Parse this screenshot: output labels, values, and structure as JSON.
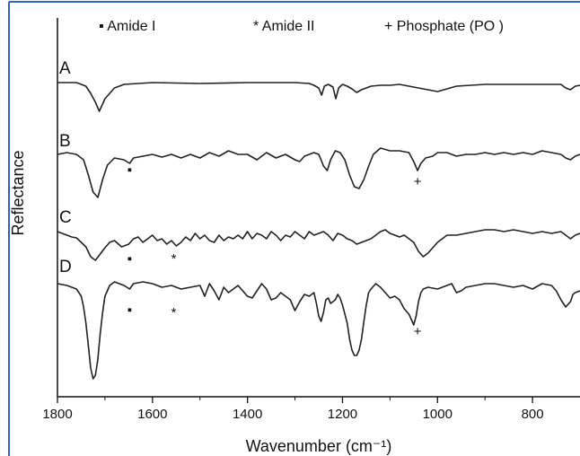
{
  "chart_data": {
    "type": "line",
    "xlabel": "Wavenumber (cm⁻¹)",
    "ylabel": "Reflectance",
    "xlim": [
      1800,
      700
    ],
    "x_ticks": [
      1800,
      1600,
      1400,
      1200,
      1000,
      800
    ],
    "x_tick_labels": [
      "1800",
      "1600",
      "1400",
      "1200",
      "1000",
      "800"
    ],
    "x_reversed": true,
    "legend": [
      {
        "symbol": "▪",
        "label": "Amide I"
      },
      {
        "symbol": "*",
        "label": "Amide II"
      },
      {
        "symbol": "+",
        "label": "Phosphate (PO )"
      }
    ],
    "series": [
      {
        "label": "A",
        "x": [
          1800,
          1760,
          1740,
          1730,
          1720,
          1712,
          1700,
          1680,
          1660,
          1600,
          1500,
          1400,
          1300,
          1270,
          1260,
          1250,
          1244,
          1238,
          1230,
          1220,
          1214,
          1208,
          1200,
          1190,
          1180,
          1170,
          1160,
          1150,
          1140,
          1120,
          1100,
          1080,
          1060,
          1040,
          1020,
          1000,
          960,
          900,
          850,
          800,
          740,
          730,
          720,
          710,
          700
        ],
        "y": [
          92,
          92,
          96,
          104,
          114,
          124,
          110,
          98,
          94,
          92,
          93,
          92,
          92,
          93,
          95,
          98,
          106,
          96,
          94,
          97,
          110,
          98,
          94,
          96,
          99,
          103,
          100,
          98,
          96,
          95,
          95,
          94,
          96,
          98,
          100,
          102,
          96,
          94,
          94,
          94,
          94,
          98,
          100,
          96,
          95
        ]
      },
      {
        "label": "B",
        "x": [
          1800,
          1780,
          1760,
          1745,
          1735,
          1725,
          1715,
          1705,
          1695,
          1680,
          1660,
          1648,
          1640,
          1620,
          1600,
          1580,
          1560,
          1540,
          1520,
          1500,
          1480,
          1460,
          1440,
          1420,
          1400,
          1380,
          1360,
          1340,
          1320,
          1300,
          1290,
          1280,
          1260,
          1250,
          1245,
          1240,
          1232,
          1225,
          1215,
          1205,
          1195,
          1185,
          1175,
          1165,
          1155,
          1145,
          1135,
          1120,
          1100,
          1080,
          1060,
          1050,
          1042,
          1035,
          1025,
          1010,
          1000,
          980,
          960,
          940,
          920,
          900,
          880,
          860,
          840,
          820,
          800,
          780,
          760,
          740,
          730,
          720,
          710,
          700
        ],
        "y": [
          172,
          170,
          172,
          178,
          195,
          214,
          220,
          200,
          184,
          176,
          178,
          182,
          176,
          174,
          172,
          175,
          172,
          176,
          172,
          176,
          170,
          174,
          168,
          172,
          172,
          178,
          170,
          176,
          172,
          178,
          180,
          174,
          170,
          172,
          178,
          185,
          190,
          178,
          168,
          170,
          178,
          195,
          208,
          210,
          200,
          185,
          172,
          165,
          168,
          168,
          170,
          180,
          190,
          182,
          176,
          174,
          170,
          170,
          174,
          172,
          172,
          170,
          172,
          170,
          172,
          170,
          172,
          168,
          170,
          172,
          176,
          178,
          174,
          172
        ]
      },
      {
        "label": "C",
        "x": [
          1800,
          1780,
          1770,
          1760,
          1750,
          1740,
          1730,
          1720,
          1710,
          1700,
          1690,
          1680,
          1665,
          1650,
          1640,
          1630,
          1620,
          1600,
          1590,
          1580,
          1570,
          1560,
          1550,
          1540,
          1530,
          1520,
          1510,
          1500,
          1490,
          1480,
          1470,
          1460,
          1450,
          1440,
          1430,
          1420,
          1410,
          1400,
          1390,
          1380,
          1370,
          1360,
          1350,
          1340,
          1330,
          1320,
          1310,
          1300,
          1290,
          1280,
          1270,
          1260,
          1250,
          1240,
          1230,
          1220,
          1210,
          1200,
          1190,
          1180,
          1170,
          1160,
          1150,
          1140,
          1130,
          1120,
          1110,
          1100,
          1090,
          1080,
          1070,
          1060,
          1050,
          1040,
          1030,
          1020,
          1010,
          1000,
          990,
          980,
          960,
          940,
          920,
          900,
          880,
          860,
          840,
          820,
          800,
          780,
          760,
          740,
          730,
          720,
          710,
          700
        ],
        "y": [
          258,
          262,
          264,
          265,
          270,
          275,
          286,
          290,
          283,
          276,
          270,
          268,
          275,
          272,
          266,
          264,
          270,
          262,
          268,
          266,
          272,
          268,
          274,
          270,
          264,
          268,
          260,
          266,
          262,
          268,
          270,
          262,
          268,
          264,
          266,
          262,
          266,
          258,
          266,
          260,
          262,
          266,
          258,
          262,
          268,
          262,
          264,
          258,
          262,
          266,
          258,
          262,
          260,
          258,
          262,
          268,
          260,
          262,
          266,
          268,
          272,
          270,
          268,
          266,
          262,
          258,
          256,
          260,
          262,
          264,
          262,
          266,
          270,
          280,
          286,
          282,
          276,
          270,
          266,
          262,
          262,
          260,
          258,
          256,
          256,
          258,
          256,
          258,
          260,
          258,
          260,
          258,
          262,
          266,
          262,
          260
        ]
      },
      {
        "label": "D",
        "x": [
          1800,
          1780,
          1760,
          1750,
          1745,
          1740,
          1735,
          1730,
          1725,
          1720,
          1715,
          1710,
          1705,
          1700,
          1690,
          1680,
          1660,
          1648,
          1640,
          1620,
          1600,
          1580,
          1560,
          1540,
          1520,
          1500,
          1490,
          1480,
          1470,
          1460,
          1450,
          1440,
          1420,
          1400,
          1390,
          1380,
          1370,
          1360,
          1350,
          1340,
          1330,
          1320,
          1310,
          1300,
          1290,
          1280,
          1270,
          1260,
          1255,
          1250,
          1245,
          1240,
          1235,
          1230,
          1225,
          1220,
          1215,
          1210,
          1205,
          1200,
          1190,
          1185,
          1180,
          1175,
          1170,
          1165,
          1160,
          1155,
          1150,
          1145,
          1140,
          1130,
          1120,
          1110,
          1100,
          1090,
          1080,
          1070,
          1060,
          1055,
          1050,
          1045,
          1040,
          1035,
          1030,
          1020,
          1000,
          980,
          970,
          960,
          950,
          940,
          920,
          900,
          880,
          860,
          840,
          820,
          800,
          780,
          760,
          750,
          740,
          730,
          720,
          715,
          710,
          700
        ],
        "y": [
          316,
          318,
          322,
          330,
          342,
          360,
          385,
          410,
          422,
          418,
          400,
          372,
          348,
          330,
          318,
          314,
          318,
          322,
          316,
          314,
          316,
          320,
          318,
          322,
          320,
          318,
          330,
          316,
          324,
          334,
          320,
          326,
          318,
          330,
          332,
          324,
          316,
          322,
          334,
          332,
          326,
          330,
          334,
          346,
          336,
          328,
          330,
          326,
          338,
          352,
          358,
          348,
          334,
          332,
          338,
          336,
          334,
          328,
          332,
          340,
          360,
          378,
          390,
          396,
          396,
          390,
          378,
          358,
          340,
          326,
          322,
          316,
          320,
          326,
          332,
          330,
          334,
          344,
          350,
          356,
          362,
          352,
          336,
          326,
          322,
          320,
          322,
          318,
          316,
          326,
          324,
          320,
          318,
          316,
          316,
          318,
          320,
          318,
          322,
          316,
          318,
          324,
          334,
          342,
          336,
          328,
          326,
          324
        ]
      }
    ],
    "annotations": [
      {
        "label": "▪",
        "x": 1648,
        "series": "B"
      },
      {
        "label": "+",
        "x": 1042,
        "series": "B"
      },
      {
        "label": "▪",
        "x": 1648,
        "series": "C"
      },
      {
        "label": "*",
        "x": 1555,
        "series": "C"
      },
      {
        "label": "▪",
        "x": 1648,
        "series": "D"
      },
      {
        "label": "*",
        "x": 1555,
        "series": "D"
      },
      {
        "label": "+",
        "x": 1042,
        "series": "D"
      }
    ]
  }
}
